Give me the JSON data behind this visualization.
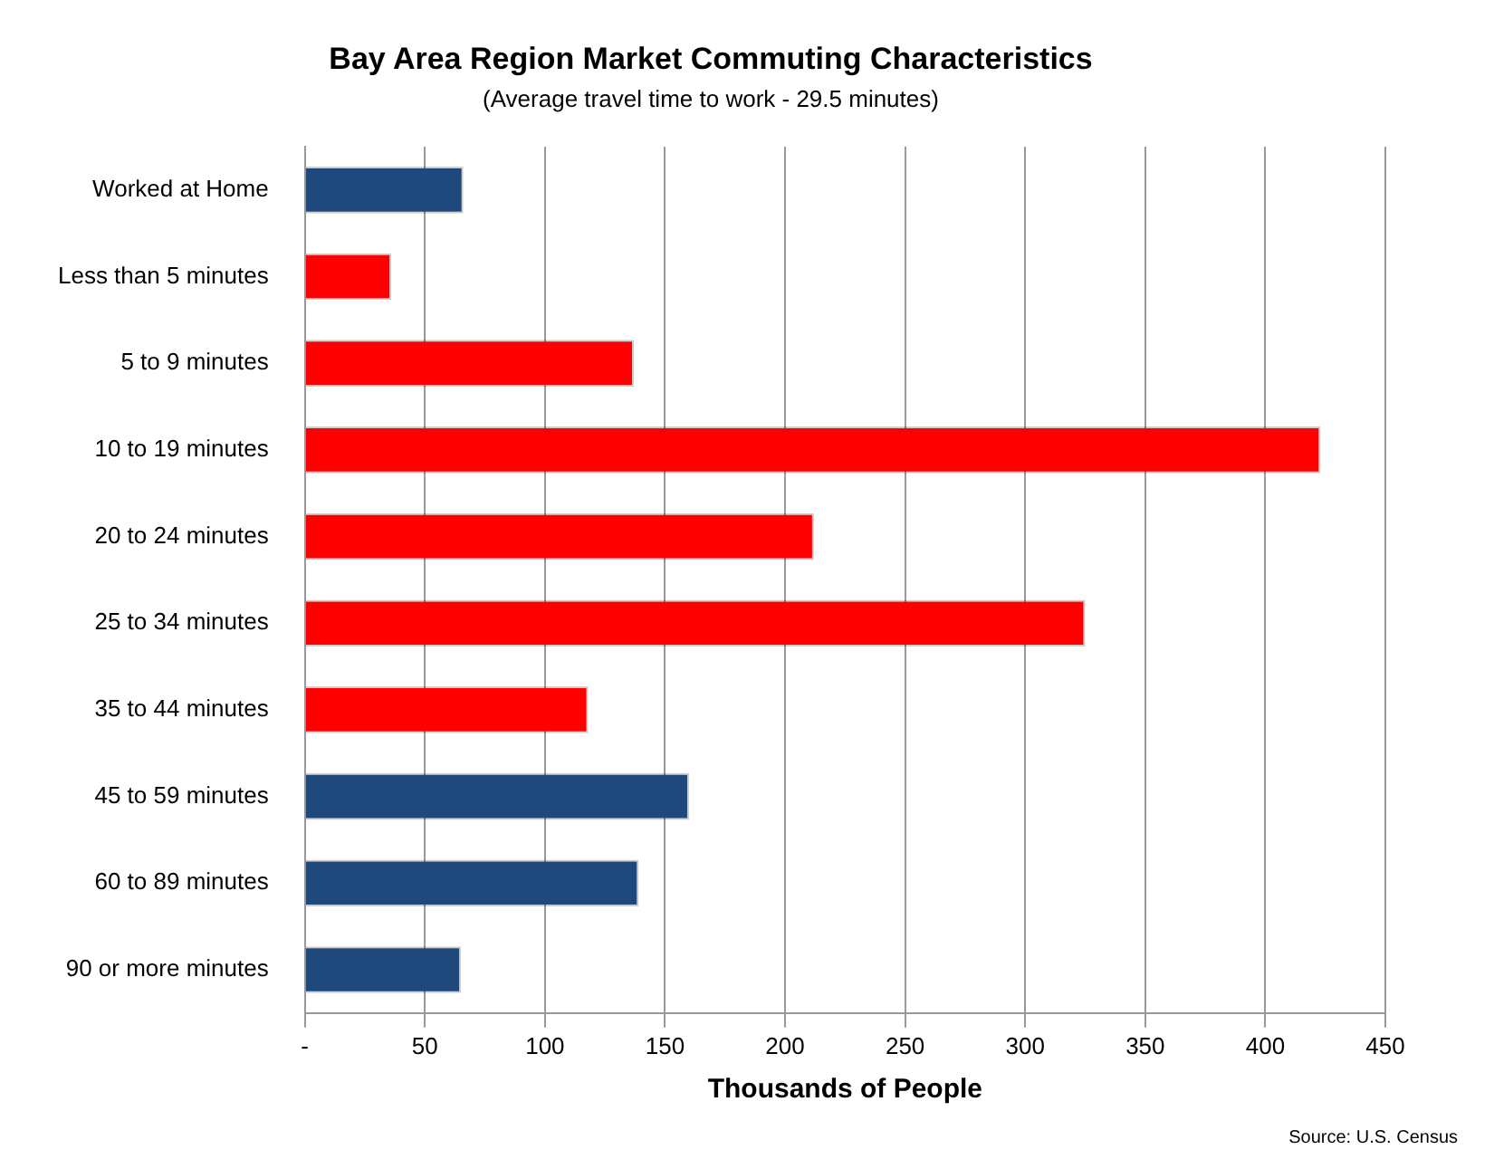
{
  "chart_data": {
    "type": "bar",
    "orientation": "horizontal",
    "title": "Bay Area Region Market Commuting Characteristics",
    "subtitle": "(Average travel time to work - 29.5 minutes)",
    "xlabel": "Thousands of People",
    "categories": [
      "Worked at Home",
      "Less than 5 minutes",
      "5 to 9 minutes",
      "10 to 19 minutes",
      "20 to 24 minutes",
      "25 to 34 minutes",
      "35 to 44 minutes",
      "45 to 59 minutes",
      "60 to 89 minutes",
      "90 or more minutes"
    ],
    "values": [
      66,
      36,
      137,
      423,
      212,
      325,
      118,
      160,
      139,
      65
    ],
    "colors": [
      "#1f497d",
      "#ff0000",
      "#ff0000",
      "#ff0000",
      "#ff0000",
      "#ff0000",
      "#ff0000",
      "#1f497d",
      "#1f497d",
      "#1f497d"
    ],
    "xlim": [
      0,
      450
    ],
    "xticks": [
      {
        "value": 0,
        "label": "-"
      },
      50,
      100,
      150,
      200,
      250,
      300,
      350,
      400,
      450
    ],
    "grid": "x",
    "legend": false,
    "annotations": [
      "Source: U.S. Census"
    ]
  }
}
